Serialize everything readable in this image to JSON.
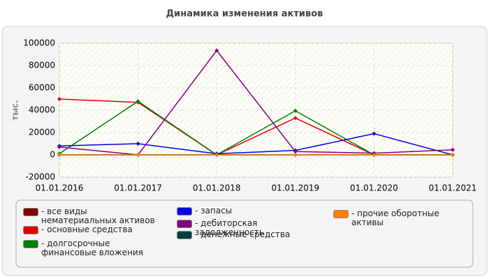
{
  "chart_data": {
    "type": "line",
    "title": "Динамика изменения активов",
    "y_label": "тыс.",
    "categories": [
      "01.01.2016",
      "01.01.2017",
      "01.01.2018",
      "01.01.2019",
      "01.01.2020",
      "01.01.2021"
    ],
    "ylim": [
      -20000,
      100000
    ],
    "yticks": [
      -20000,
      0,
      20000,
      40000,
      60000,
      80000,
      100000
    ],
    "grid": true,
    "series": [
      {
        "name": "- все виды нематериальных активов",
        "color": "#800000",
        "values": [
          0,
          0,
          0,
          0,
          0,
          0
        ]
      },
      {
        "name": "- основные средства",
        "color": "#e00000",
        "values": [
          50000,
          47000,
          0,
          33000,
          0,
          0
        ]
      },
      {
        "name": "- долгосрочные финансовые вложения",
        "color": "#008000",
        "values": [
          1000,
          48000,
          0,
          39500,
          0,
          0
        ]
      },
      {
        "name": "- запасы",
        "color": "#0000e0",
        "values": [
          8000,
          10000,
          1000,
          4000,
          19000,
          0
        ]
      },
      {
        "name": "- дебиторская задолженность",
        "color": "#800080",
        "values": [
          7000,
          0,
          93500,
          3000,
          1500,
          4500
        ]
      },
      {
        "name": "- денежные средства",
        "color": "#004040",
        "values": [
          0,
          0,
          0,
          0,
          0,
          0
        ]
      },
      {
        "name": "- прочие оборотные активы",
        "color": "#ff8000",
        "values": [
          0,
          0,
          0,
          0,
          0,
          0
        ]
      }
    ]
  }
}
